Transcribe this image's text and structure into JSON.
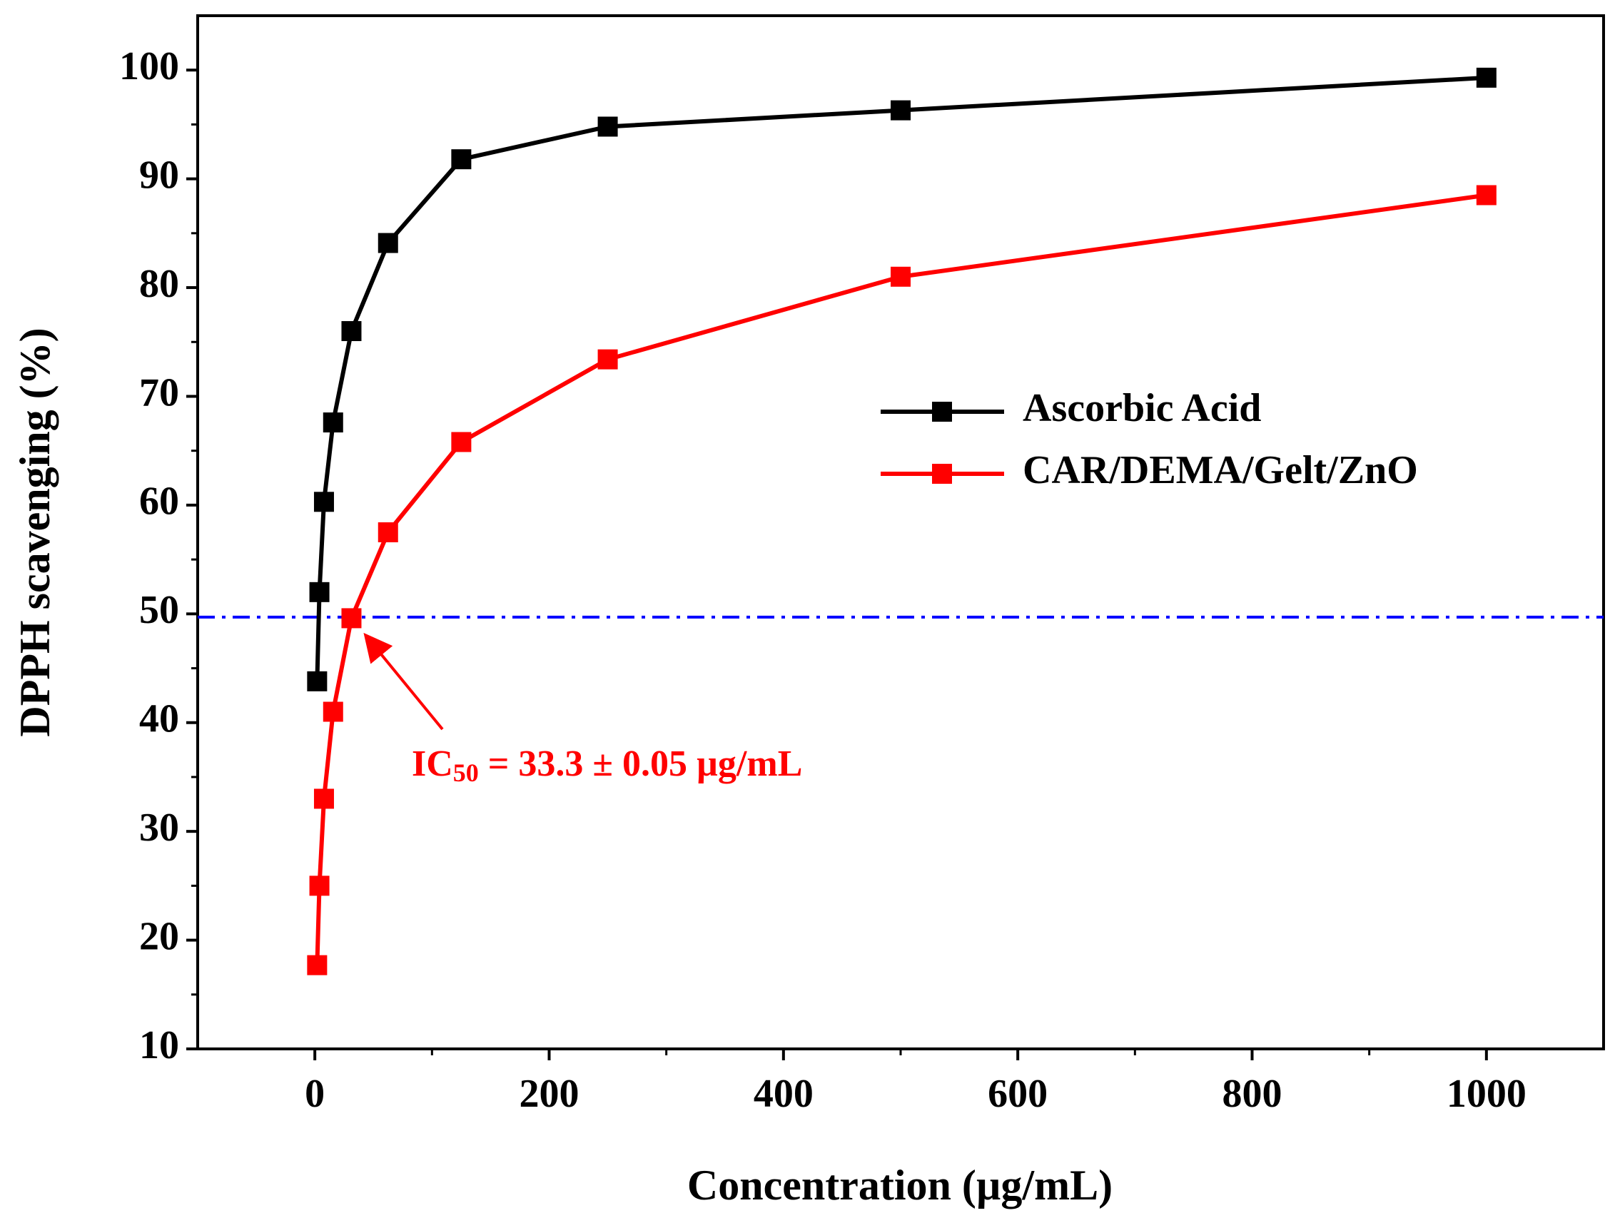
{
  "chart_data": {
    "type": "line",
    "xlabel": "Concentration (µg/mL)",
    "ylabel": "DPPH scavenging (%)",
    "xlim": [
      -100,
      1100
    ],
    "ylim": [
      10,
      105
    ],
    "xticks": [
      0,
      200,
      400,
      600,
      800,
      1000
    ],
    "yticks": [
      10,
      20,
      30,
      40,
      50,
      60,
      70,
      80,
      90,
      100
    ],
    "xminorticks": [
      100,
      300,
      500,
      700,
      900
    ],
    "yminorticks": [
      15,
      25,
      35,
      45,
      55,
      65,
      75,
      85,
      95
    ],
    "x": [
      1.95,
      3.9,
      7.8,
      15.6,
      31.25,
      62.5,
      125,
      250,
      500,
      1000
    ],
    "series": [
      {
        "name": "Ascorbic Acid",
        "color": "#000000",
        "values": [
          43.8,
          52.0,
          60.3,
          67.6,
          76.0,
          84.1,
          91.8,
          94.8,
          96.3,
          99.3
        ]
      },
      {
        "name": "CAR/DEMA/Gelt/ZnO",
        "color": "#ff0000",
        "values": [
          17.7,
          25.0,
          33.0,
          41.0,
          49.6,
          57.5,
          65.8,
          73.4,
          81.0,
          88.5
        ]
      }
    ],
    "reference_line": {
      "y": 49.7,
      "color": "#0000ff",
      "style": "dashdot"
    },
    "annotation": {
      "text": "IC",
      "subscript": "50",
      "text_after": " = 33.3 ± 0.05 µg/mL",
      "color": "#ff0000"
    },
    "legend": "center-right",
    "grid": false
  }
}
